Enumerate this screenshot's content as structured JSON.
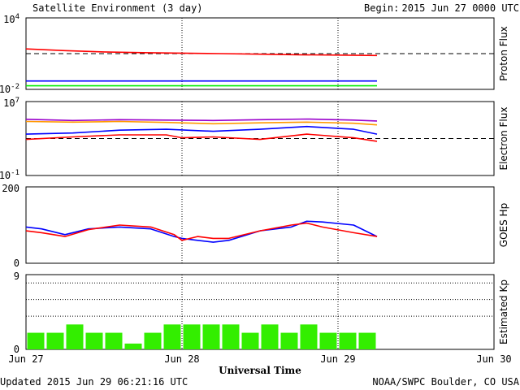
{
  "header": {
    "title": "Satellite Environment (3 day)",
    "begin_label": "Begin:",
    "begin_value": "2015 Jun 27 0000 UTC"
  },
  "footer": {
    "updated": "Updated 2015 Jun 29 06:21:16 UTC",
    "credit": "NOAA/SWPC Boulder, CO USA",
    "xlabel": "Universal Time"
  },
  "chart_data": [
    {
      "type": "line",
      "ylabel": "Proton Flux",
      "yscale": "log",
      "ylim": [
        0.01,
        10000
      ],
      "ticks": [
        {
          "base": "10",
          "exp": "4",
          "value": 10000
        },
        {
          "base": "10",
          "exp": "-2",
          "value": 0.01
        }
      ],
      "threshold": 10,
      "series": [
        {
          "color": "#ff0000",
          "x": [
            0,
            0.25,
            0.5,
            0.75,
            1.0,
            1.25,
            1.5,
            1.75,
            2.0,
            2.25
          ],
          "y": [
            25,
            18,
            14,
            12,
            11,
            10,
            9,
            8,
            7.5,
            7
          ]
        },
        {
          "color": "#0000ff",
          "x": [
            0,
            2.25
          ],
          "y": [
            0.05,
            0.05
          ]
        },
        {
          "color": "#00ee00",
          "x": [
            0,
            2.25
          ],
          "y": [
            0.02,
            0.02
          ]
        }
      ]
    },
    {
      "type": "line",
      "ylabel": "Electron Flux",
      "yscale": "log",
      "ylim": [
        0.1,
        10000000
      ],
      "ticks": [
        {
          "base": "10",
          "exp": "7",
          "value": 10000000
        },
        {
          "base": "10",
          "exp": "-1",
          "value": 0.1
        }
      ],
      "threshold": 1000,
      "series": [
        {
          "color": "#9900cc",
          "x": [
            0,
            0.3,
            0.6,
            0.9,
            1.2,
            1.5,
            1.8,
            2.1,
            2.25
          ],
          "y": [
            120000,
            90000,
            110000,
            100000,
            90000,
            110000,
            130000,
            100000,
            80000
          ]
        },
        {
          "color": "#ff9900",
          "x": [
            0,
            0.3,
            0.6,
            0.9,
            1.2,
            1.5,
            1.8,
            2.1,
            2.25
          ],
          "y": [
            70000,
            60000,
            70000,
            55000,
            40000,
            50000,
            60000,
            45000,
            30000
          ]
        },
        {
          "color": "#0000ff",
          "x": [
            0,
            0.3,
            0.6,
            0.9,
            1.2,
            1.5,
            1.8,
            2.1,
            2.25
          ],
          "y": [
            3000,
            4000,
            8000,
            10000,
            6000,
            10000,
            20000,
            10000,
            3000
          ]
        },
        {
          "color": "#ff0000",
          "x": [
            0,
            0.3,
            0.6,
            0.9,
            1.0,
            1.2,
            1.5,
            1.8,
            2.1,
            2.25
          ],
          "y": [
            800,
            1500,
            2500,
            2500,
            1200,
            1500,
            800,
            3000,
            1200,
            500
          ]
        }
      ]
    },
    {
      "type": "line",
      "ylabel": "GOES Hp",
      "yscale": "linear",
      "ylim": [
        0,
        200
      ],
      "ticks": [
        {
          "label": "200",
          "value": 200
        },
        {
          "label": "0",
          "value": 0
        }
      ],
      "series": [
        {
          "color": "#0000ff",
          "x": [
            0,
            0.1,
            0.25,
            0.4,
            0.6,
            0.8,
            0.95,
            1.0,
            1.1,
            1.2,
            1.3,
            1.5,
            1.7,
            1.8,
            1.9,
            2.1,
            2.25
          ],
          "y": [
            95,
            90,
            75,
            90,
            95,
            90,
            70,
            65,
            60,
            55,
            60,
            85,
            95,
            110,
            108,
            100,
            70
          ]
        },
        {
          "color": "#ff0000",
          "x": [
            0,
            0.1,
            0.25,
            0.4,
            0.6,
            0.8,
            0.95,
            1.0,
            1.1,
            1.2,
            1.3,
            1.5,
            1.7,
            1.8,
            1.9,
            2.1,
            2.25
          ],
          "y": [
            85,
            80,
            70,
            88,
            100,
            95,
            75,
            60,
            70,
            65,
            65,
            85,
            100,
            105,
            95,
            80,
            70
          ]
        }
      ]
    },
    {
      "type": "bar",
      "ylabel": "Estimated Kp",
      "ylim": [
        0,
        9
      ],
      "ticks": [
        {
          "label": "9",
          "value": 9
        },
        {
          "label": "0",
          "value": 0
        }
      ],
      "grid_levels": [
        4,
        6,
        8
      ],
      "bar_color": "#33ee00",
      "bar_width": 0.125,
      "values": [
        2.0,
        2.0,
        3.0,
        2.0,
        2.0,
        0.7,
        2.0,
        3.0,
        3.0,
        3.0,
        3.0,
        2.0,
        3.0,
        2.0,
        3.0,
        2.0,
        2.0,
        2.0
      ]
    }
  ],
  "x_axis": {
    "range": [
      0,
      3
    ],
    "ticks": [
      {
        "label": "Jun 27",
        "value": 0
      },
      {
        "label": "Jun 28",
        "value": 1
      },
      {
        "label": "Jun 29",
        "value": 2
      },
      {
        "label": "Jun 30",
        "value": 3
      }
    ],
    "vlines": [
      1,
      2
    ]
  }
}
